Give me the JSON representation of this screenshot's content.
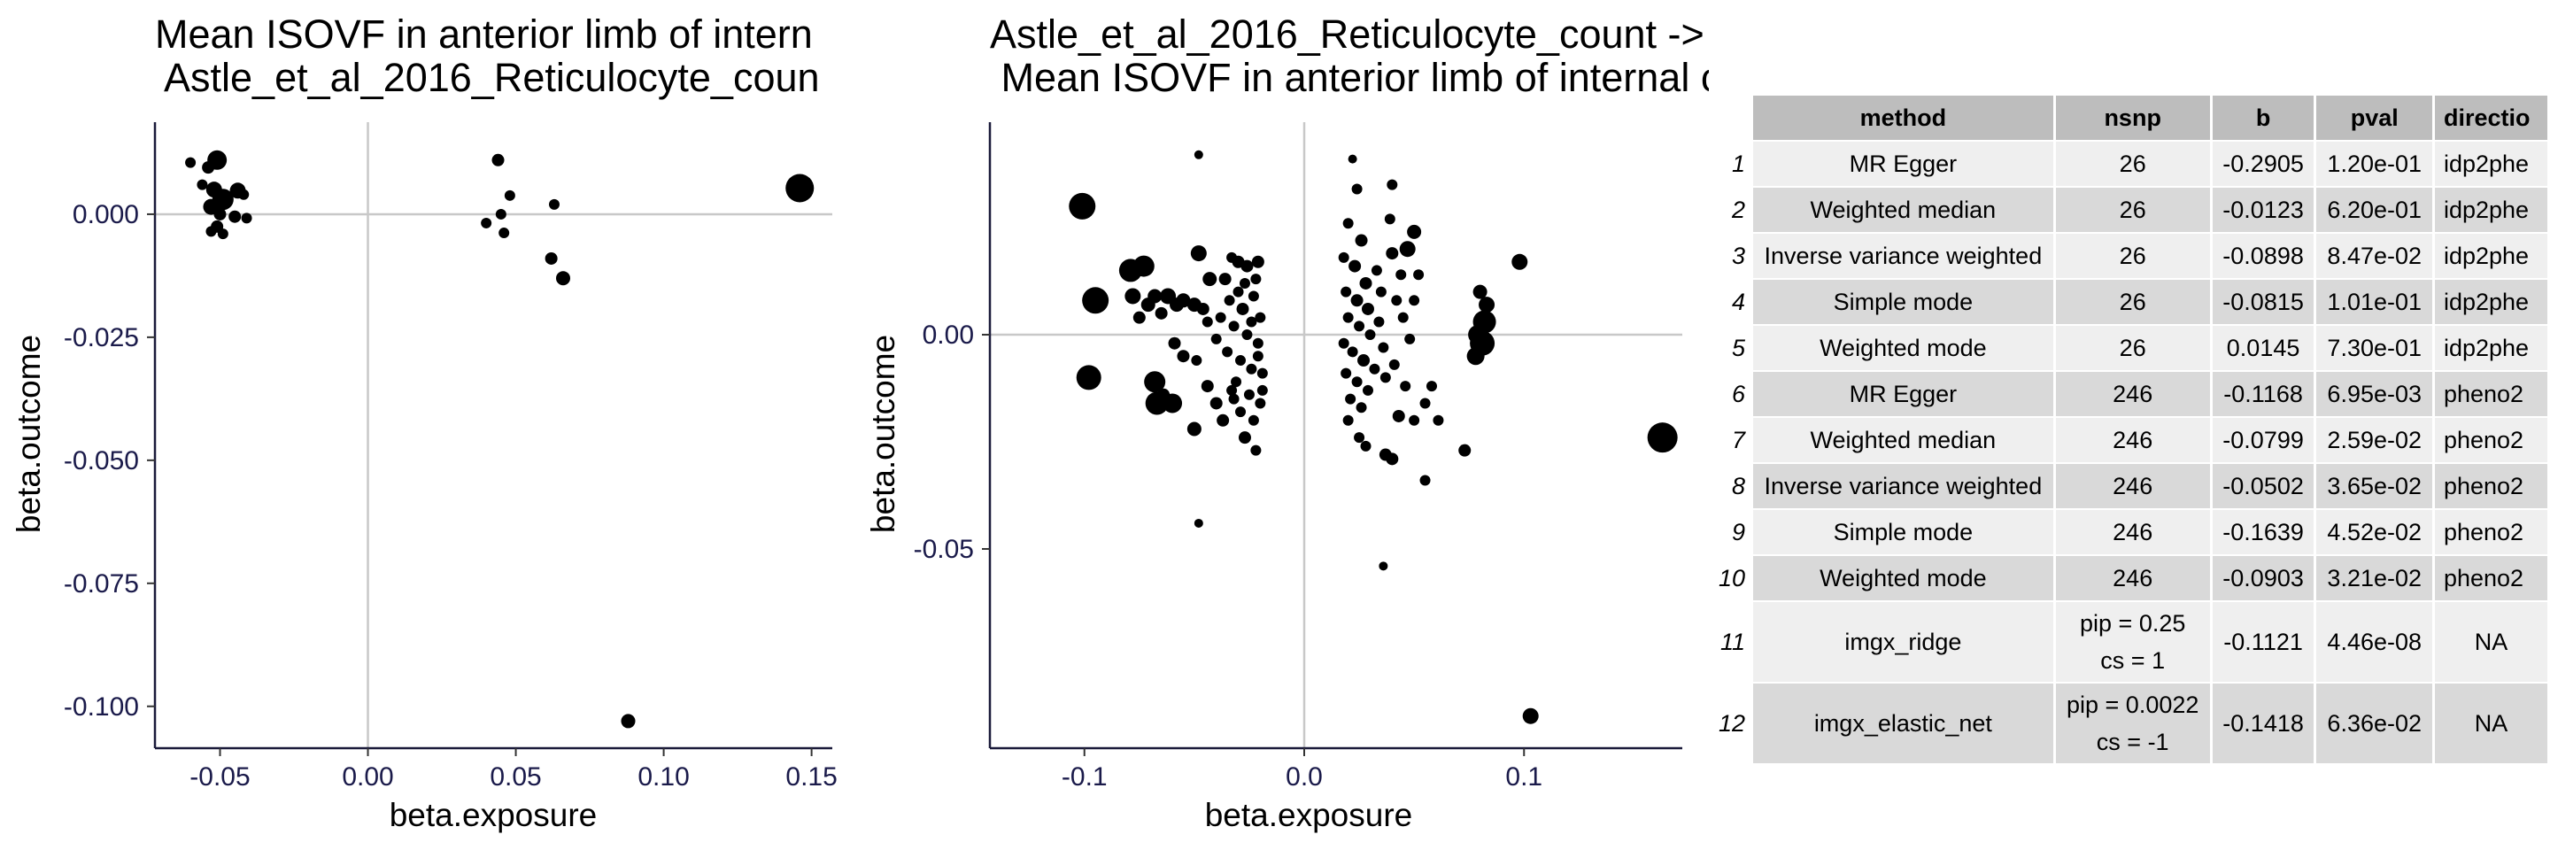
{
  "chart_data": [
    {
      "type": "scatter",
      "title_lines": [
        "Mean ISOVF in anterior limb of intern",
        " Astle_et_al_2016_Reticulocyte_coun"
      ],
      "xlabel": "beta.exposure",
      "ylabel": "beta.outcome",
      "xlim": [
        -0.072,
        0.157
      ],
      "ylim": [
        -0.1085,
        0.0187
      ],
      "xticks": [
        -0.05,
        0.0,
        0.05,
        0.1,
        0.15
      ],
      "xtick_labels": [
        "-0.05",
        "0.00",
        "0.05",
        "0.10",
        "0.15"
      ],
      "yticks": [
        0.0,
        -0.025,
        -0.05,
        -0.075,
        -0.1
      ],
      "ytick_labels": [
        "0.000",
        "-0.025",
        "-0.050",
        "-0.075",
        "-0.100"
      ],
      "reference_lines": {
        "x": 0,
        "y": 0
      },
      "points": [
        {
          "x": -0.06,
          "y": 0.0105,
          "r": 6
        },
        {
          "x": -0.054,
          "y": 0.0095,
          "r": 7
        },
        {
          "x": -0.051,
          "y": 0.011,
          "r": 11
        },
        {
          "x": -0.056,
          "y": 0.006,
          "r": 6
        },
        {
          "x": -0.052,
          "y": 0.005,
          "r": 9
        },
        {
          "x": -0.049,
          "y": 0.003,
          "r": 12
        },
        {
          "x": -0.053,
          "y": 0.0015,
          "r": 9
        },
        {
          "x": -0.05,
          "y": 0.0,
          "r": 7
        },
        {
          "x": -0.044,
          "y": 0.0048,
          "r": 9
        },
        {
          "x": -0.042,
          "y": 0.004,
          "r": 6
        },
        {
          "x": -0.045,
          "y": -0.0005,
          "r": 7
        },
        {
          "x": -0.041,
          "y": -0.0008,
          "r": 6
        },
        {
          "x": -0.051,
          "y": -0.0025,
          "r": 7
        },
        {
          "x": -0.049,
          "y": -0.004,
          "r": 6
        },
        {
          "x": -0.053,
          "y": -0.0035,
          "r": 6
        },
        {
          "x": 0.044,
          "y": 0.011,
          "r": 7
        },
        {
          "x": 0.048,
          "y": 0.0038,
          "r": 6
        },
        {
          "x": 0.045,
          "y": 0.0,
          "r": 6
        },
        {
          "x": 0.04,
          "y": -0.0018,
          "r": 6
        },
        {
          "x": 0.046,
          "y": -0.0038,
          "r": 6
        },
        {
          "x": 0.063,
          "y": 0.002,
          "r": 6
        },
        {
          "x": 0.062,
          "y": -0.009,
          "r": 7
        },
        {
          "x": 0.066,
          "y": -0.013,
          "r": 8
        },
        {
          "x": 0.146,
          "y": 0.0053,
          "r": 16
        },
        {
          "x": 0.088,
          "y": -0.103,
          "r": 8
        }
      ]
    },
    {
      "type": "scatter",
      "title_lines": [
        "Astle_et_al_2016_Reticulocyte_count ->",
        " Mean ISOVF in anterior limb of internal capsule on FA skeleton (left)"
      ],
      "xlabel": "beta.exposure",
      "ylabel": "beta.outcome",
      "xlim": [
        -0.143,
        0.172
      ],
      "ylim": [
        -0.0965,
        0.0496
      ],
      "xticks": [
        -0.1,
        0.0,
        0.1
      ],
      "xtick_labels": [
        "-0.1",
        "0.0",
        "0.1"
      ],
      "yticks": [
        0.0,
        -0.05
      ],
      "ytick_labels": [
        "0.00",
        "-0.05"
      ],
      "reference_lines": {
        "x": 0,
        "y": 0
      },
      "points": [
        {
          "x": -0.101,
          "y": 0.03,
          "r": 15
        },
        {
          "x": -0.095,
          "y": 0.008,
          "r": 15
        },
        {
          "x": -0.098,
          "y": -0.01,
          "r": 14
        },
        {
          "x": -0.079,
          "y": 0.015,
          "r": 13
        },
        {
          "x": -0.073,
          "y": 0.016,
          "r": 12
        },
        {
          "x": -0.078,
          "y": 0.009,
          "r": 9
        },
        {
          "x": -0.071,
          "y": 0.007,
          "r": 8
        },
        {
          "x": -0.068,
          "y": 0.009,
          "r": 8
        },
        {
          "x": -0.075,
          "y": 0.004,
          "r": 7
        },
        {
          "x": -0.065,
          "y": 0.005,
          "r": 7
        },
        {
          "x": -0.062,
          "y": 0.009,
          "r": 9
        },
        {
          "x": -0.058,
          "y": 0.007,
          "r": 8
        },
        {
          "x": -0.055,
          "y": 0.008,
          "r": 8
        },
        {
          "x": -0.05,
          "y": 0.007,
          "r": 8
        },
        {
          "x": -0.048,
          "y": 0.019,
          "r": 9
        },
        {
          "x": -0.046,
          "y": 0.006,
          "r": 7
        },
        {
          "x": -0.043,
          "y": 0.013,
          "r": 8
        },
        {
          "x": -0.059,
          "y": -0.002,
          "r": 7
        },
        {
          "x": -0.055,
          "y": -0.005,
          "r": 7
        },
        {
          "x": -0.049,
          "y": -0.006,
          "r": 6
        },
        {
          "x": -0.068,
          "y": -0.011,
          "r": 12
        },
        {
          "x": -0.067,
          "y": -0.016,
          "r": 13
        },
        {
          "x": -0.06,
          "y": -0.016,
          "r": 11
        },
        {
          "x": -0.064,
          "y": -0.014,
          "r": 7
        },
        {
          "x": -0.05,
          "y": -0.022,
          "r": 8
        },
        {
          "x": -0.044,
          "y": -0.012,
          "r": 7
        },
        {
          "x": -0.04,
          "y": -0.016,
          "r": 7
        },
        {
          "x": -0.037,
          "y": -0.02,
          "r": 7
        },
        {
          "x": -0.033,
          "y": -0.013,
          "r": 6
        },
        {
          "x": -0.027,
          "y": -0.024,
          "r": 7
        },
        {
          "x": -0.022,
          "y": -0.027,
          "r": 6
        },
        {
          "x": -0.036,
          "y": 0.013,
          "r": 7
        },
        {
          "x": -0.03,
          "y": 0.017,
          "r": 7
        },
        {
          "x": -0.026,
          "y": 0.016,
          "r": 7
        },
        {
          "x": -0.021,
          "y": 0.017,
          "r": 7
        },
        {
          "x": -0.034,
          "y": 0.008,
          "r": 6
        },
        {
          "x": -0.028,
          "y": 0.006,
          "r": 7
        },
        {
          "x": -0.023,
          "y": 0.009,
          "r": 6
        },
        {
          "x": -0.02,
          "y": 0.004,
          "r": 6
        },
        {
          "x": -0.032,
          "y": 0.002,
          "r": 6
        },
        {
          "x": -0.026,
          "y": 0.0,
          "r": 6
        },
        {
          "x": -0.021,
          "y": -0.002,
          "r": 6
        },
        {
          "x": -0.035,
          "y": -0.004,
          "r": 6
        },
        {
          "x": -0.029,
          "y": -0.006,
          "r": 6
        },
        {
          "x": -0.024,
          "y": -0.008,
          "r": 6
        },
        {
          "x": -0.019,
          "y": -0.009,
          "r": 6
        },
        {
          "x": -0.031,
          "y": -0.011,
          "r": 6
        },
        {
          "x": -0.025,
          "y": -0.014,
          "r": 6
        },
        {
          "x": -0.02,
          "y": -0.016,
          "r": 6
        },
        {
          "x": -0.029,
          "y": -0.018,
          "r": 6
        },
        {
          "x": -0.023,
          "y": -0.02,
          "r": 6
        },
        {
          "x": -0.019,
          "y": -0.013,
          "r": 6
        },
        {
          "x": -0.027,
          "y": 0.012,
          "r": 6
        },
        {
          "x": -0.022,
          "y": 0.013,
          "r": 6
        },
        {
          "x": -0.033,
          "y": 0.018,
          "r": 6
        },
        {
          "x": -0.038,
          "y": 0.004,
          "r": 6
        },
        {
          "x": -0.04,
          "y": -0.001,
          "r": 6
        },
        {
          "x": -0.048,
          "y": 0.042,
          "r": 5
        },
        {
          "x": -0.048,
          "y": -0.044,
          "r": 5
        },
        {
          "x": -0.044,
          "y": 0.003,
          "r": 6
        },
        {
          "x": -0.03,
          "y": 0.01,
          "r": 6
        },
        {
          "x": -0.024,
          "y": 0.003,
          "r": 6
        },
        {
          "x": -0.021,
          "y": -0.005,
          "r": 6
        },
        {
          "x": -0.032,
          "y": -0.015,
          "r": 6
        },
        {
          "x": 0.022,
          "y": 0.041,
          "r": 5
        },
        {
          "x": 0.024,
          "y": 0.034,
          "r": 6
        },
        {
          "x": 0.02,
          "y": 0.026,
          "r": 6
        },
        {
          "x": 0.026,
          "y": 0.022,
          "r": 7
        },
        {
          "x": 0.018,
          "y": 0.018,
          "r": 6
        },
        {
          "x": 0.023,
          "y": 0.016,
          "r": 7
        },
        {
          "x": 0.028,
          "y": 0.012,
          "r": 7
        },
        {
          "x": 0.019,
          "y": 0.01,
          "r": 6
        },
        {
          "x": 0.024,
          "y": 0.008,
          "r": 7
        },
        {
          "x": 0.029,
          "y": 0.006,
          "r": 7
        },
        {
          "x": 0.02,
          "y": 0.004,
          "r": 6
        },
        {
          "x": 0.025,
          "y": 0.002,
          "r": 6
        },
        {
          "x": 0.03,
          "y": 0.0,
          "r": 6
        },
        {
          "x": 0.018,
          "y": -0.002,
          "r": 6
        },
        {
          "x": 0.022,
          "y": -0.004,
          "r": 6
        },
        {
          "x": 0.027,
          "y": -0.006,
          "r": 7
        },
        {
          "x": 0.032,
          "y": -0.008,
          "r": 6
        },
        {
          "x": 0.019,
          "y": -0.009,
          "r": 6
        },
        {
          "x": 0.024,
          "y": -0.011,
          "r": 6
        },
        {
          "x": 0.029,
          "y": -0.013,
          "r": 6
        },
        {
          "x": 0.021,
          "y": -0.015,
          "r": 6
        },
        {
          "x": 0.026,
          "y": -0.017,
          "r": 6
        },
        {
          "x": 0.02,
          "y": -0.02,
          "r": 6
        },
        {
          "x": 0.025,
          "y": -0.024,
          "r": 6
        },
        {
          "x": 0.028,
          "y": -0.026,
          "r": 6
        },
        {
          "x": 0.033,
          "y": 0.015,
          "r": 6
        },
        {
          "x": 0.035,
          "y": 0.01,
          "r": 6
        },
        {
          "x": 0.034,
          "y": 0.003,
          "r": 6
        },
        {
          "x": 0.036,
          "y": -0.003,
          "r": 6
        },
        {
          "x": 0.037,
          "y": -0.01,
          "r": 6
        },
        {
          "x": 0.039,
          "y": 0.027,
          "r": 6
        },
        {
          "x": 0.04,
          "y": 0.019,
          "r": 7
        },
        {
          "x": 0.044,
          "y": 0.014,
          "r": 6
        },
        {
          "x": 0.047,
          "y": 0.02,
          "r": 9
        },
        {
          "x": 0.05,
          "y": 0.024,
          "r": 8
        },
        {
          "x": 0.042,
          "y": 0.008,
          "r": 6
        },
        {
          "x": 0.045,
          "y": 0.004,
          "r": 6
        },
        {
          "x": 0.048,
          "y": -0.001,
          "r": 6
        },
        {
          "x": 0.041,
          "y": -0.007,
          "r": 6
        },
        {
          "x": 0.046,
          "y": -0.012,
          "r": 6
        },
        {
          "x": 0.043,
          "y": -0.019,
          "r": 7
        },
        {
          "x": 0.05,
          "y": -0.02,
          "r": 6
        },
        {
          "x": 0.037,
          "y": -0.028,
          "r": 7
        },
        {
          "x": 0.04,
          "y": -0.029,
          "r": 7
        },
        {
          "x": 0.055,
          "y": -0.016,
          "r": 6
        },
        {
          "x": 0.058,
          "y": -0.012,
          "r": 6
        },
        {
          "x": 0.061,
          "y": -0.02,
          "r": 6
        },
        {
          "x": 0.055,
          "y": -0.034,
          "r": 6
        },
        {
          "x": 0.036,
          "y": -0.054,
          "r": 5
        },
        {
          "x": 0.04,
          "y": 0.035,
          "r": 6
        },
        {
          "x": 0.05,
          "y": 0.008,
          "r": 6
        },
        {
          "x": 0.052,
          "y": 0.014,
          "r": 6
        },
        {
          "x": 0.08,
          "y": 0.01,
          "r": 8
        },
        {
          "x": 0.083,
          "y": 0.007,
          "r": 9
        },
        {
          "x": 0.082,
          "y": 0.003,
          "r": 13
        },
        {
          "x": 0.079,
          "y": 0.0,
          "r": 11
        },
        {
          "x": 0.081,
          "y": -0.002,
          "r": 14
        },
        {
          "x": 0.078,
          "y": -0.005,
          "r": 10
        },
        {
          "x": 0.098,
          "y": 0.017,
          "r": 9
        },
        {
          "x": 0.073,
          "y": -0.027,
          "r": 7
        },
        {
          "x": 0.103,
          "y": -0.089,
          "r": 9
        },
        {
          "x": 0.163,
          "y": -0.024,
          "r": 17
        }
      ]
    }
  ],
  "mr_table": {
    "headers": [
      "method",
      "nsnp",
      "b",
      "pval",
      "directio"
    ],
    "rows": [
      {
        "idx": "1",
        "method": "MR Egger",
        "nsnp": "26",
        "b": "-0.2905",
        "pval": "1.20e-01",
        "direction": "idp2phe"
      },
      {
        "idx": "2",
        "method": "Weighted median",
        "nsnp": "26",
        "b": "-0.0123",
        "pval": "6.20e-01",
        "direction": "idp2phe"
      },
      {
        "idx": "3",
        "method": "Inverse variance weighted",
        "nsnp": "26",
        "b": "-0.0898",
        "pval": "8.47e-02",
        "direction": "idp2phe"
      },
      {
        "idx": "4",
        "method": "Simple mode",
        "nsnp": "26",
        "b": "-0.0815",
        "pval": "1.01e-01",
        "direction": "idp2phe"
      },
      {
        "idx": "5",
        "method": "Weighted mode",
        "nsnp": "26",
        "b": "0.0145",
        "pval": "7.30e-01",
        "direction": "idp2phe"
      },
      {
        "idx": "6",
        "method": "MR Egger",
        "nsnp": "246",
        "b": "-0.1168",
        "pval": "6.95e-03",
        "direction": "pheno2"
      },
      {
        "idx": "7",
        "method": "Weighted median",
        "nsnp": "246",
        "b": "-0.0799",
        "pval": "2.59e-02",
        "direction": "pheno2"
      },
      {
        "idx": "8",
        "method": "Inverse variance weighted",
        "nsnp": "246",
        "b": "-0.0502",
        "pval": "3.65e-02",
        "direction": "pheno2"
      },
      {
        "idx": "9",
        "method": "Simple mode",
        "nsnp": "246",
        "b": "-0.1639",
        "pval": "4.52e-02",
        "direction": "pheno2"
      },
      {
        "idx": "10",
        "method": "Weighted mode",
        "nsnp": "246",
        "b": "-0.0903",
        "pval": "3.21e-02",
        "direction": "pheno2"
      },
      {
        "idx": "11",
        "method": "imgx_ridge",
        "nsnp_line1": "pip = 0.25",
        "nsnp_line2": "cs = 1",
        "b": "-0.1121",
        "pval": "4.46e-08",
        "direction": "NA"
      },
      {
        "idx": "12",
        "method": "imgx_elastic_net",
        "nsnp_line1": "pip = 0.0022",
        "nsnp_line2": "cs = -1",
        "b": "-0.1418",
        "pval": "6.36e-02",
        "direction": "NA"
      }
    ]
  }
}
